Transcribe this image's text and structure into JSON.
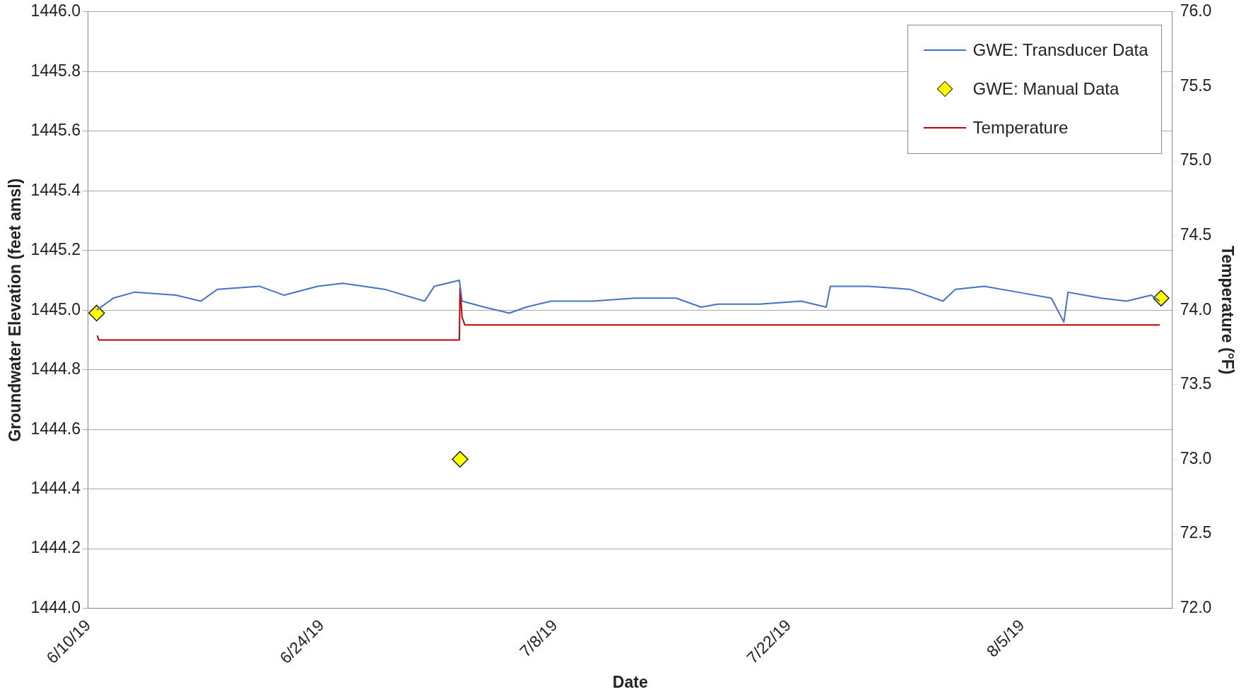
{
  "chart_data": {
    "type": "line",
    "xlabel": "Date",
    "ylabel": "Groundwater Elevation (feet amsl)",
    "y2label": "Temperature (°F)",
    "xlim": [
      "2019-06-10",
      "2019-08-14"
    ],
    "xticks": [
      {
        "value": "2019-06-10",
        "label": "6/10/19"
      },
      {
        "value": "2019-06-24",
        "label": "6/24/19"
      },
      {
        "value": "2019-07-08",
        "label": "7/8/19"
      },
      {
        "value": "2019-07-22",
        "label": "7/22/19"
      },
      {
        "value": "2019-08-05",
        "label": "8/5/19"
      }
    ],
    "ylim": [
      1444,
      1446
    ],
    "yticks": [
      {
        "value": 1444,
        "label": "1444.0"
      },
      {
        "value": 1444.2,
        "label": "1444.2"
      },
      {
        "value": 1444.4,
        "label": "1444.4"
      },
      {
        "value": 1444.6,
        "label": "1444.6"
      },
      {
        "value": 1444.8,
        "label": "1444.8"
      },
      {
        "value": 1445,
        "label": "1445.0"
      },
      {
        "value": 1445.2,
        "label": "1445.2"
      },
      {
        "value": 1445.4,
        "label": "1445.4"
      },
      {
        "value": 1445.6,
        "label": "1445.6"
      },
      {
        "value": 1445.8,
        "label": "1445.8"
      },
      {
        "value": 1446,
        "label": "1446.0"
      }
    ],
    "y2lim": [
      72,
      76
    ],
    "y2ticks": [
      {
        "value": 72,
        "label": "72.0"
      },
      {
        "value": 72.5,
        "label": "72.5"
      },
      {
        "value": 73,
        "label": "73.0"
      },
      {
        "value": 73.5,
        "label": "73.5"
      },
      {
        "value": 74,
        "label": "74.0"
      },
      {
        "value": 74.5,
        "label": "74.5"
      },
      {
        "value": 75,
        "label": "75.0"
      },
      {
        "value": 75.5,
        "label": "75.5"
      },
      {
        "value": 76,
        "label": "76.0"
      }
    ],
    "grid": "y",
    "legend": "top right",
    "series": [
      {
        "name": "GWE: Transducer Data",
        "color": "#4472c4",
        "marker": "none",
        "x": [
          "2019-06-10T12:00",
          "2019-06-11T12:00",
          "2019-06-12T18:00",
          "2019-06-15T06:00",
          "2019-06-16T18:00",
          "2019-06-17T18:00",
          "2019-06-20T06:00",
          "2019-06-21T18:00",
          "2019-06-23T18:00",
          "2019-06-25T06:00",
          "2019-06-27T18:00",
          "2019-06-30T04:00",
          "2019-06-30T18:00",
          "2019-07-02T06:00",
          "2019-07-02T10:00",
          "2019-07-03T18:00",
          "2019-07-05T06:00",
          "2019-07-06T06:00",
          "2019-07-07T18:00",
          "2019-07-10T06:00",
          "2019-07-12T18:00",
          "2019-07-15T06:00",
          "2019-07-16T18:00",
          "2019-07-17T18:00",
          "2019-07-20T06:00",
          "2019-07-22T18:00",
          "2019-07-24T06:00",
          "2019-07-24T12:00",
          "2019-07-26T18:00",
          "2019-07-29T06:00",
          "2019-07-31T06:00",
          "2019-08-01T00:00",
          "2019-08-02T18:00",
          "2019-08-04T18:00",
          "2019-08-06T18:00",
          "2019-08-07T12:00",
          "2019-08-07T18:00",
          "2019-08-09T18:00",
          "2019-08-11T06:00",
          "2019-08-12T18:00",
          "2019-08-13T06:00"
        ],
        "values": [
          1445.0,
          1445.04,
          1445.06,
          1445.05,
          1445.03,
          1445.07,
          1445.08,
          1445.05,
          1445.08,
          1445.09,
          1445.07,
          1445.03,
          1445.08,
          1445.1,
          1445.03,
          1445.01,
          1444.99,
          1445.01,
          1445.03,
          1445.03,
          1445.04,
          1445.04,
          1445.01,
          1445.02,
          1445.02,
          1445.03,
          1445.01,
          1445.08,
          1445.08,
          1445.07,
          1445.03,
          1445.07,
          1445.08,
          1445.06,
          1445.04,
          1444.96,
          1445.06,
          1445.04,
          1445.03,
          1445.05,
          1445.03
        ]
      },
      {
        "name": "GWE: Manual Data",
        "type": "scatter",
        "color": "#ffff00",
        "marker": "diamond",
        "x": [
          "2019-06-10T12:00",
          "2019-07-02T07:00",
          "2019-08-13T08:00"
        ],
        "values": [
          1444.99,
          1444.5,
          1445.04
        ]
      },
      {
        "name": "Temperature",
        "axis": "y2",
        "color": "#c00000",
        "marker": "none",
        "x": [
          "2019-06-10T13:00",
          "2019-06-10T15:00",
          "2019-07-02T06:00",
          "2019-07-02T07:00",
          "2019-07-02T10:00",
          "2019-07-02T14:00",
          "2019-07-20T00:00",
          "2019-08-13T06:00"
        ],
        "values": [
          73.83,
          73.8,
          73.8,
          74.15,
          73.95,
          73.9,
          73.9,
          73.9
        ]
      }
    ]
  }
}
